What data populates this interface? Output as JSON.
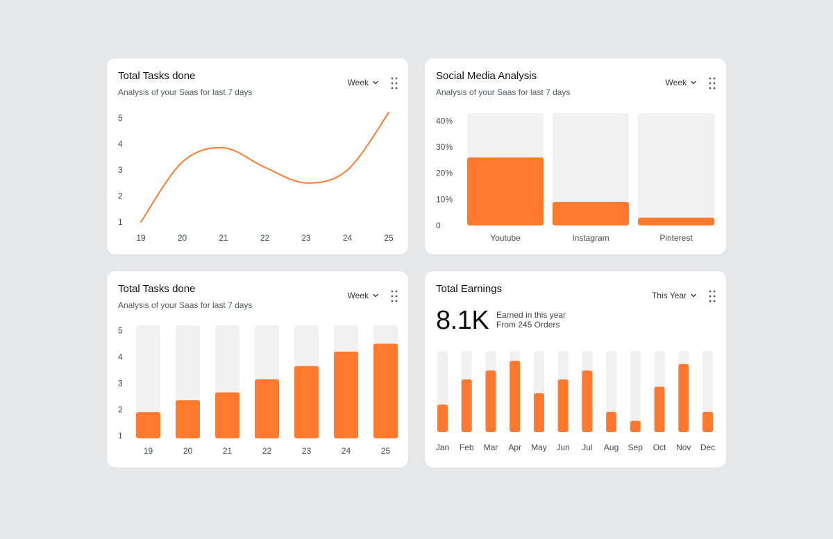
{
  "colors": {
    "accent": "#ff7a2f",
    "track": "#f1f1f1",
    "axis_text": "#444a50"
  },
  "icons": {
    "dropdown": "chevron-down-icon",
    "menu": "drag-handle-icon"
  },
  "cards": {
    "tasks_line": {
      "title": "Total Tasks done",
      "subtitle": "Analysis of your Saas for last 7 days",
      "period": "Week"
    },
    "social": {
      "title": "Social Media Analysis",
      "subtitle": "Analysis of your Saas for last 7 days",
      "period": "Week"
    },
    "tasks_bar": {
      "title": "Total Tasks done",
      "subtitle": "Analysis of your Saas for last 7 days",
      "period": "Week"
    },
    "earnings": {
      "title": "Total Earnings",
      "period": "This Year",
      "total": "8.1K",
      "note_line1": "Earned in this year",
      "note_line2": "From 245 Orders"
    }
  },
  "chart_data": [
    {
      "id": "tasks_line",
      "type": "line",
      "x": [
        "19",
        "20",
        "21",
        "22",
        "23",
        "24",
        "25"
      ],
      "y_ticks": [
        "5",
        "4",
        "3",
        "2",
        "1"
      ],
      "ylim": [
        1,
        5
      ],
      "series": [
        {
          "values": [
            1.0,
            3.3,
            3.85,
            3.1,
            2.5,
            3.0,
            5.2
          ]
        }
      ]
    },
    {
      "id": "social",
      "type": "bar",
      "categories": [
        "Youtube",
        "Instagram",
        "Pinterest"
      ],
      "values": [
        26,
        9,
        3
      ],
      "y_ticks": [
        "40%",
        "30%",
        "20%",
        "10%",
        "0"
      ],
      "ylim": [
        0,
        43
      ]
    },
    {
      "id": "tasks_bar",
      "type": "bar",
      "categories": [
        "19",
        "20",
        "21",
        "22",
        "23",
        "24",
        "25"
      ],
      "values": [
        1.9,
        2.35,
        2.65,
        3.15,
        3.65,
        4.2,
        4.5
      ],
      "y_ticks": [
        "5",
        "4",
        "3",
        "2",
        "1"
      ],
      "ylim": [
        0.9,
        5.2
      ]
    },
    {
      "id": "earnings",
      "type": "bar",
      "categories": [
        "Jan",
        "Feb",
        "Mar",
        "Apr",
        "May",
        "Jun",
        "Jul",
        "Aug",
        "Sep",
        "Oct",
        "Nov",
        "Dec"
      ],
      "values": [
        34,
        65,
        76,
        88,
        48,
        65,
        76,
        25,
        14,
        56,
        84,
        25
      ],
      "ylim": [
        0,
        100
      ]
    }
  ]
}
